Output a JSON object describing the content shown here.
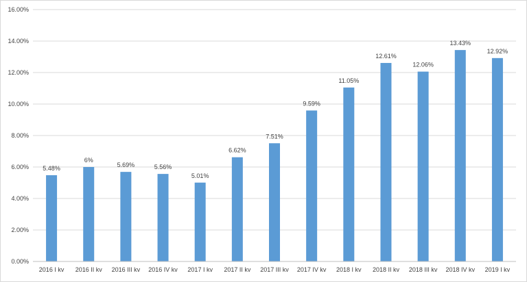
{
  "chart_data": {
    "type": "bar",
    "title": "",
    "xlabel": "",
    "ylabel": "",
    "ylim": [
      0,
      16
    ],
    "ytick_step": 2,
    "ytick_format": "percent_2dp",
    "grid": true,
    "legend": "none",
    "bar_color": "#5b9bd5",
    "categories": [
      "2016 I kv",
      "2016 II kv",
      "2016 III kv",
      "2016 IV kv",
      "2017 I kv",
      "2017 II kv",
      "2017 III kv",
      "2017 IV kv",
      "2018 I kv",
      "2018 II kv",
      "2018 III kv",
      "2018 IV kv",
      "2019 I kv"
    ],
    "values": [
      5.48,
      6,
      5.69,
      5.56,
      5.01,
      6.62,
      7.51,
      9.59,
      11.05,
      12.61,
      12.06,
      13.43,
      12.92
    ],
    "data_labels": [
      "5.48%",
      "6%",
      "5.69%",
      "5.56%",
      "5.01%",
      "6.62%",
      "7.51%",
      "9.59%",
      "11.05%",
      "12.61%",
      "12.06%",
      "13.43%",
      "12.92%"
    ],
    "y_tick_labels": [
      "0.00%",
      "2.00%",
      "4.00%",
      "6.00%",
      "8.00%",
      "10.00%",
      "12.00%",
      "14.00%",
      "16.00%"
    ]
  }
}
